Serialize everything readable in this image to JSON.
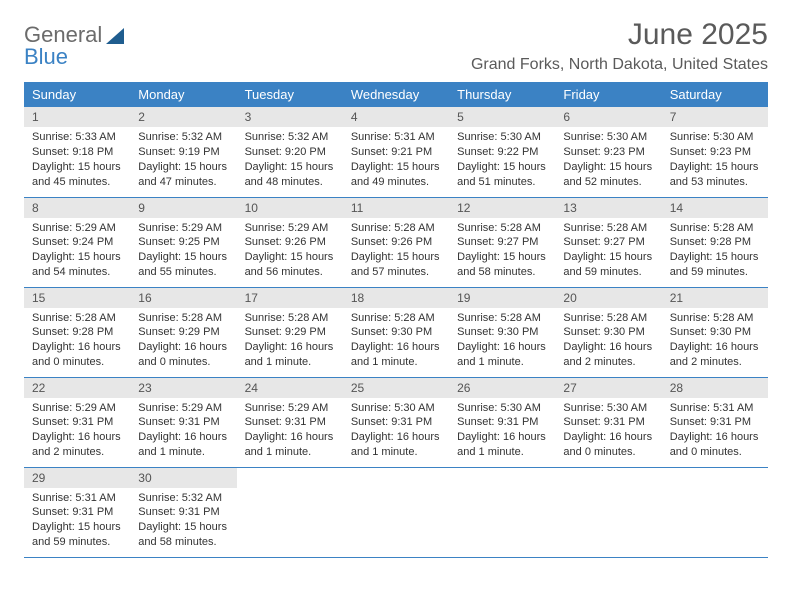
{
  "brand": {
    "text_general": "General",
    "text_blue": "Blue",
    "triangle_color": "#1f5d8f"
  },
  "header": {
    "month_title": "June 2025",
    "location": "Grand Forks, North Dakota, United States"
  },
  "style": {
    "header_bg": "#3b82c4",
    "header_text": "#ffffff",
    "daynum_bg": "#e7e7e7",
    "row_rule": "#3b82c4",
    "body_text": "#333333"
  },
  "weekdays": [
    "Sunday",
    "Monday",
    "Tuesday",
    "Wednesday",
    "Thursday",
    "Friday",
    "Saturday"
  ],
  "weeks": [
    [
      {
        "n": "1",
        "sunrise": "5:33 AM",
        "sunset": "9:18 PM",
        "dl": "15 hours and 45 minutes."
      },
      {
        "n": "2",
        "sunrise": "5:32 AM",
        "sunset": "9:19 PM",
        "dl": "15 hours and 47 minutes."
      },
      {
        "n": "3",
        "sunrise": "5:32 AM",
        "sunset": "9:20 PM",
        "dl": "15 hours and 48 minutes."
      },
      {
        "n": "4",
        "sunrise": "5:31 AM",
        "sunset": "9:21 PM",
        "dl": "15 hours and 49 minutes."
      },
      {
        "n": "5",
        "sunrise": "5:30 AM",
        "sunset": "9:22 PM",
        "dl": "15 hours and 51 minutes."
      },
      {
        "n": "6",
        "sunrise": "5:30 AM",
        "sunset": "9:23 PM",
        "dl": "15 hours and 52 minutes."
      },
      {
        "n": "7",
        "sunrise": "5:30 AM",
        "sunset": "9:23 PM",
        "dl": "15 hours and 53 minutes."
      }
    ],
    [
      {
        "n": "8",
        "sunrise": "5:29 AM",
        "sunset": "9:24 PM",
        "dl": "15 hours and 54 minutes."
      },
      {
        "n": "9",
        "sunrise": "5:29 AM",
        "sunset": "9:25 PM",
        "dl": "15 hours and 55 minutes."
      },
      {
        "n": "10",
        "sunrise": "5:29 AM",
        "sunset": "9:26 PM",
        "dl": "15 hours and 56 minutes."
      },
      {
        "n": "11",
        "sunrise": "5:28 AM",
        "sunset": "9:26 PM",
        "dl": "15 hours and 57 minutes."
      },
      {
        "n": "12",
        "sunrise": "5:28 AM",
        "sunset": "9:27 PM",
        "dl": "15 hours and 58 minutes."
      },
      {
        "n": "13",
        "sunrise": "5:28 AM",
        "sunset": "9:27 PM",
        "dl": "15 hours and 59 minutes."
      },
      {
        "n": "14",
        "sunrise": "5:28 AM",
        "sunset": "9:28 PM",
        "dl": "15 hours and 59 minutes."
      }
    ],
    [
      {
        "n": "15",
        "sunrise": "5:28 AM",
        "sunset": "9:28 PM",
        "dl": "16 hours and 0 minutes."
      },
      {
        "n": "16",
        "sunrise": "5:28 AM",
        "sunset": "9:29 PM",
        "dl": "16 hours and 0 minutes."
      },
      {
        "n": "17",
        "sunrise": "5:28 AM",
        "sunset": "9:29 PM",
        "dl": "16 hours and 1 minute."
      },
      {
        "n": "18",
        "sunrise": "5:28 AM",
        "sunset": "9:30 PM",
        "dl": "16 hours and 1 minute."
      },
      {
        "n": "19",
        "sunrise": "5:28 AM",
        "sunset": "9:30 PM",
        "dl": "16 hours and 1 minute."
      },
      {
        "n": "20",
        "sunrise": "5:28 AM",
        "sunset": "9:30 PM",
        "dl": "16 hours and 2 minutes."
      },
      {
        "n": "21",
        "sunrise": "5:28 AM",
        "sunset": "9:30 PM",
        "dl": "16 hours and 2 minutes."
      }
    ],
    [
      {
        "n": "22",
        "sunrise": "5:29 AM",
        "sunset": "9:31 PM",
        "dl": "16 hours and 2 minutes."
      },
      {
        "n": "23",
        "sunrise": "5:29 AM",
        "sunset": "9:31 PM",
        "dl": "16 hours and 1 minute."
      },
      {
        "n": "24",
        "sunrise": "5:29 AM",
        "sunset": "9:31 PM",
        "dl": "16 hours and 1 minute."
      },
      {
        "n": "25",
        "sunrise": "5:30 AM",
        "sunset": "9:31 PM",
        "dl": "16 hours and 1 minute."
      },
      {
        "n": "26",
        "sunrise": "5:30 AM",
        "sunset": "9:31 PM",
        "dl": "16 hours and 1 minute."
      },
      {
        "n": "27",
        "sunrise": "5:30 AM",
        "sunset": "9:31 PM",
        "dl": "16 hours and 0 minutes."
      },
      {
        "n": "28",
        "sunrise": "5:31 AM",
        "sunset": "9:31 PM",
        "dl": "16 hours and 0 minutes."
      }
    ],
    [
      {
        "n": "29",
        "sunrise": "5:31 AM",
        "sunset": "9:31 PM",
        "dl": "15 hours and 59 minutes."
      },
      {
        "n": "30",
        "sunrise": "5:32 AM",
        "sunset": "9:31 PM",
        "dl": "15 hours and 58 minutes."
      },
      null,
      null,
      null,
      null,
      null
    ]
  ],
  "labels": {
    "sunrise": "Sunrise:",
    "sunset": "Sunset:",
    "daylight": "Daylight:"
  }
}
